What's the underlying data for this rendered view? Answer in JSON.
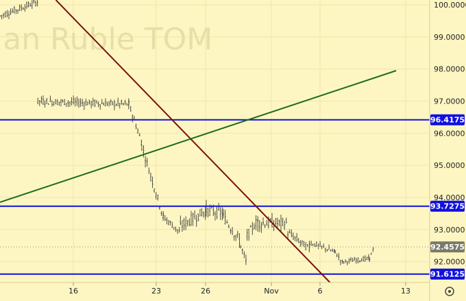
{
  "watermark": "lan Ruble TOM",
  "settings_icon": "gear-icon",
  "colors": {
    "background": "#fdf6c2",
    "grid": "#efe6a6",
    "candle": "#3a3a3a",
    "horizontal_level": "#1010e0",
    "down_trend": "#7b1010",
    "up_trend": "#1e6b1e",
    "last_price_tag": "#7a7a6a"
  },
  "chart_data": {
    "type": "line",
    "title": "",
    "ylim": [
      91.35,
      100.15
    ],
    "x_axis_ticks": [
      "16",
      "23",
      "26",
      "Nov",
      "6",
      "13"
    ],
    "y_axis_ticks": [
      "100.0000",
      "99.0000",
      "98.0000",
      "97.0000",
      "96.0000",
      "95.0000",
      "94.0000",
      "93.0000",
      "92.0000"
    ],
    "horizontal_levels": [
      "96.4175",
      "93.7275",
      "91.6125"
    ],
    "last_price": "92.4575",
    "trend_lines": [
      {
        "name": "down",
        "from": [
          0.13,
          100.15
        ],
        "to": [
          0.768,
          91.35
        ]
      },
      {
        "name": "up",
        "from": [
          0.0,
          93.85
        ],
        "to": [
          0.922,
          97.95
        ]
      }
    ],
    "series": [
      {
        "x_start": 0.0,
        "x_end": 0.088,
        "y_start": 99.65,
        "y_end": 100.1,
        "noise": 0.18
      },
      {
        "x_start": 0.088,
        "x_end": 0.3,
        "y_start": 97.0,
        "y_end": 96.9,
        "noise": 0.2
      },
      {
        "x_start": 0.3,
        "x_end": 0.33,
        "y_start": 96.9,
        "y_end": 95.7,
        "noise": 0.2
      },
      {
        "x_start": 0.33,
        "x_end": 0.38,
        "y_start": 95.6,
        "y_end": 93.4,
        "noise": 0.25
      },
      {
        "x_start": 0.38,
        "x_end": 0.42,
        "y_start": 93.4,
        "y_end": 92.9,
        "noise": 0.2
      },
      {
        "x_start": 0.42,
        "x_end": 0.48,
        "y_start": 93.1,
        "y_end": 93.6,
        "noise": 0.3
      },
      {
        "x_start": 0.48,
        "x_end": 0.52,
        "y_start": 93.6,
        "y_end": 93.5,
        "noise": 0.3
      },
      {
        "x_start": 0.52,
        "x_end": 0.56,
        "y_start": 93.4,
        "y_end": 92.6,
        "noise": 0.3
      },
      {
        "x_start": 0.56,
        "x_end": 0.575,
        "y_start": 92.5,
        "y_end": 91.9,
        "noise": 0.25
      },
      {
        "x_start": 0.575,
        "x_end": 0.6,
        "y_start": 92.8,
        "y_end": 93.3,
        "noise": 0.25
      },
      {
        "x_start": 0.6,
        "x_end": 0.67,
        "y_start": 93.2,
        "y_end": 93.2,
        "noise": 0.3
      },
      {
        "x_start": 0.67,
        "x_end": 0.72,
        "y_start": 92.9,
        "y_end": 92.4,
        "noise": 0.2
      },
      {
        "x_start": 0.72,
        "x_end": 0.78,
        "y_start": 92.6,
        "y_end": 92.3,
        "noise": 0.15
      },
      {
        "x_start": 0.78,
        "x_end": 0.8,
        "y_start": 92.3,
        "y_end": 91.9,
        "noise": 0.15
      },
      {
        "x_start": 0.8,
        "x_end": 0.86,
        "y_start": 92.0,
        "y_end": 92.1,
        "noise": 0.12
      },
      {
        "x_start": 0.86,
        "x_end": 0.87,
        "y_start": 92.1,
        "y_end": 92.45,
        "noise": 0.1
      }
    ]
  }
}
